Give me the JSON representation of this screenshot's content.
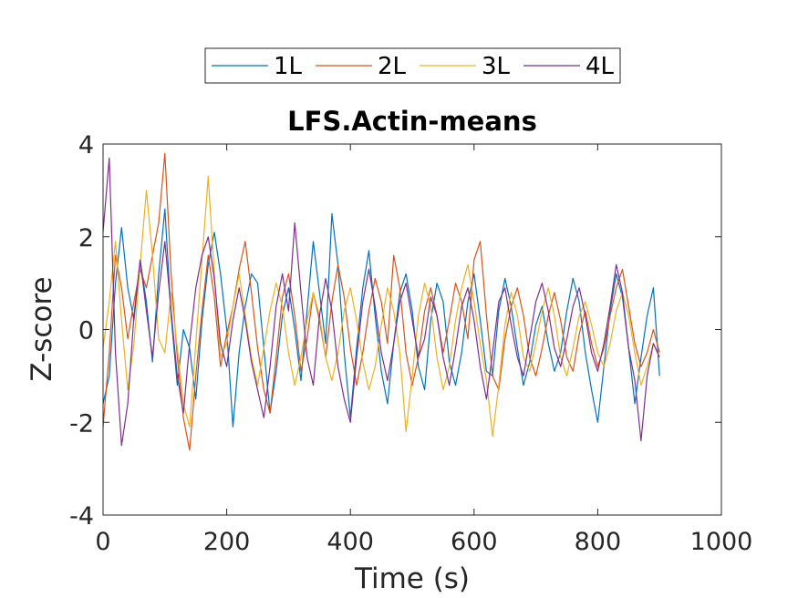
{
  "chart_data": {
    "type": "line",
    "title": "LFS.Actin-means",
    "xlabel": "Time (s)",
    "ylabel": "Z-score",
    "xlim": [
      0,
      1000
    ],
    "ylim": [
      -4,
      4
    ],
    "xticks": [
      0,
      200,
      400,
      600,
      800,
      1000
    ],
    "yticks": [
      -4,
      -2,
      0,
      2,
      4
    ],
    "xtick_labels": [
      "0",
      "200",
      "400",
      "600",
      "800",
      "1000"
    ],
    "ytick_labels": [
      "-4",
      "-2",
      "0",
      "2",
      "4"
    ],
    "grid": false,
    "legend": {
      "placement": "top-center-outside",
      "orientation": "horizontal"
    },
    "series": [
      {
        "name": "1L",
        "color": "#0072BD",
        "x": [
          0,
          10,
          20,
          30,
          40,
          50,
          60,
          70,
          80,
          90,
          100,
          110,
          120,
          130,
          140,
          150,
          160,
          170,
          180,
          190,
          200,
          210,
          220,
          230,
          240,
          250,
          260,
          270,
          280,
          290,
          300,
          310,
          320,
          330,
          340,
          350,
          360,
          370,
          380,
          390,
          400,
          410,
          420,
          430,
          440,
          450,
          460,
          470,
          480,
          490,
          500,
          510,
          520,
          530,
          540,
          550,
          560,
          570,
          580,
          590,
          600,
          610,
          620,
          630,
          640,
          650,
          660,
          670,
          680,
          690,
          700,
          710,
          720,
          730,
          740,
          750,
          760,
          770,
          780,
          790,
          800,
          810,
          820,
          830,
          840,
          850,
          860,
          870,
          880,
          890,
          900
        ],
        "values": [
          -1.6,
          -1.0,
          1.0,
          2.2,
          0.9,
          0.2,
          1.5,
          0.6,
          -0.7,
          1.2,
          2.6,
          0.3,
          -1.2,
          0.0,
          -0.4,
          -1.5,
          0.2,
          1.4,
          2.1,
          1.2,
          0.0,
          -2.1,
          -0.5,
          0.5,
          1.2,
          1.0,
          -0.4,
          -1.8,
          -0.9,
          0.3,
          0.9,
          0.0,
          -1.1,
          0.4,
          1.9,
          0.8,
          -0.3,
          2.5,
          1.4,
          -0.5,
          -1.9,
          -0.4,
          0.9,
          1.7,
          0.3,
          -0.9,
          -1.6,
          -0.3,
          0.8,
          1.2,
          0.4,
          -0.8,
          -1.3,
          0.2,
          1.0,
          0.6,
          -0.7,
          -1.2,
          -0.5,
          0.6,
          1.2,
          0.2,
          -0.9,
          -1.0,
          0.4,
          1.1,
          0.5,
          -0.4,
          -1.2,
          -0.7,
          0.1,
          0.5,
          -0.3,
          -0.9,
          -0.5,
          0.4,
          1.1,
          0.6,
          -0.5,
          -1.3,
          -2.0,
          -0.8,
          0.4,
          1.2,
          0.7,
          -0.4,
          -1.6,
          -0.6,
          0.3,
          0.9,
          -1.0
        ]
      },
      {
        "name": "2L",
        "color": "#D95319",
        "x": [
          0,
          10,
          20,
          30,
          40,
          50,
          60,
          70,
          80,
          90,
          100,
          110,
          120,
          130,
          140,
          150,
          160,
          170,
          180,
          190,
          200,
          210,
          220,
          230,
          240,
          250,
          260,
          270,
          280,
          290,
          300,
          310,
          320,
          330,
          340,
          350,
          360,
          370,
          380,
          390,
          400,
          410,
          420,
          430,
          440,
          450,
          460,
          470,
          480,
          490,
          500,
          510,
          520,
          530,
          540,
          550,
          560,
          570,
          580,
          590,
          600,
          610,
          620,
          630,
          640,
          650,
          660,
          670,
          680,
          690,
          700,
          710,
          720,
          730,
          740,
          750,
          760,
          770,
          780,
          790,
          800,
          810,
          820,
          830,
          840,
          850,
          860,
          870,
          880,
          890,
          900
        ],
        "values": [
          -2.1,
          -0.5,
          1.6,
          0.9,
          -0.2,
          0.6,
          1.3,
          0.9,
          1.6,
          2.3,
          3.8,
          1.2,
          -0.6,
          -1.9,
          -2.6,
          -1.0,
          0.4,
          1.6,
          0.7,
          -0.8,
          -0.1,
          0.5,
          1.3,
          1.9,
          0.8,
          -0.4,
          -1.3,
          -1.8,
          -0.6,
          0.7,
          1.2,
          0.3,
          -0.9,
          -0.2,
          0.8,
          0.2,
          -0.6,
          0.6,
          1.4,
          0.7,
          -0.4,
          -1.2,
          -0.5,
          0.4,
          1.1,
          0.6,
          -0.3,
          1.6,
          0.9,
          -0.5,
          -1.2,
          -0.6,
          0.4,
          0.9,
          0.3,
          -0.5,
          0.2,
          1.0,
          0.6,
          -0.2,
          1.5,
          1.9,
          0.3,
          -1.0,
          -1.3,
          -0.2,
          0.5,
          0.9,
          0.3,
          -0.6,
          -1.0,
          -0.4,
          0.3,
          0.8,
          0.2,
          -0.6,
          -0.9,
          -0.1,
          0.4,
          -0.3,
          -0.8,
          -0.4,
          0.3,
          0.9,
          1.3,
          0.5,
          -0.3,
          -0.8,
          -0.5,
          0.0,
          -0.5
        ]
      },
      {
        "name": "3L",
        "color": "#EDB120",
        "x": [
          0,
          10,
          20,
          30,
          40,
          50,
          60,
          70,
          80,
          90,
          100,
          110,
          120,
          130,
          140,
          150,
          160,
          170,
          180,
          190,
          200,
          210,
          220,
          230,
          240,
          250,
          260,
          270,
          280,
          290,
          300,
          310,
          320,
          330,
          340,
          350,
          360,
          370,
          380,
          390,
          400,
          410,
          420,
          430,
          440,
          450,
          460,
          470,
          480,
          490,
          500,
          510,
          520,
          530,
          540,
          550,
          560,
          570,
          580,
          590,
          600,
          610,
          620,
          630,
          640,
          650,
          660,
          670,
          680,
          690,
          700,
          710,
          720,
          730,
          740,
          750,
          760,
          770,
          780,
          790,
          800,
          810,
          820,
          830,
          840,
          850,
          860,
          870,
          880,
          890,
          900
        ],
        "values": [
          -0.4,
          0.6,
          1.9,
          0.2,
          -1.3,
          -0.3,
          1.4,
          3.0,
          1.6,
          -0.2,
          -0.5,
          0.8,
          -0.4,
          -1.6,
          -2.1,
          -0.3,
          1.5,
          3.3,
          1.2,
          -0.6,
          -0.3,
          0.5,
          1.2,
          0.3,
          -0.6,
          -1.2,
          -0.4,
          0.4,
          1.0,
          0.5,
          -0.5,
          -1.2,
          -0.6,
          0.2,
          0.8,
          0.3,
          -0.6,
          -1.1,
          -0.5,
          0.4,
          0.9,
          0.2,
          -0.7,
          -1.3,
          -0.8,
          0.1,
          0.9,
          0.4,
          -0.5,
          -2.2,
          -1.0,
          0.3,
          1.0,
          0.5,
          -0.6,
          -1.3,
          -0.8,
          0.2,
          0.9,
          1.4,
          0.6,
          -0.3,
          -1.1,
          -2.3,
          -1.2,
          0.1,
          0.8,
          0.3,
          -0.6,
          -0.9,
          -0.3,
          0.4,
          0.9,
          0.3,
          -0.6,
          -1.0,
          -0.4,
          0.3,
          0.6,
          0.1,
          -0.5,
          -0.8,
          -0.3,
          0.4,
          0.8,
          0.3,
          -0.5,
          -1.2,
          -0.8,
          -0.3,
          -0.6
        ]
      },
      {
        "name": "4L",
        "color": "#7E2F8E",
        "x": [
          0,
          10,
          20,
          30,
          40,
          50,
          60,
          70,
          80,
          90,
          100,
          110,
          120,
          130,
          140,
          150,
          160,
          170,
          180,
          190,
          200,
          210,
          220,
          230,
          240,
          250,
          260,
          270,
          280,
          290,
          300,
          310,
          320,
          330,
          340,
          350,
          360,
          370,
          380,
          390,
          400,
          410,
          420,
          430,
          440,
          450,
          460,
          470,
          480,
          490,
          500,
          510,
          520,
          530,
          540,
          550,
          560,
          570,
          580,
          590,
          600,
          610,
          620,
          630,
          640,
          650,
          660,
          670,
          680,
          690,
          700,
          710,
          720,
          730,
          740,
          750,
          760,
          770,
          780,
          790,
          800,
          810,
          820,
          830,
          840,
          850,
          860,
          870,
          880,
          890,
          900
        ],
        "values": [
          2.1,
          3.7,
          -0.5,
          -2.5,
          -1.6,
          0.3,
          1.5,
          0.4,
          -0.6,
          0.8,
          1.9,
          0.4,
          -1.0,
          -1.8,
          -0.3,
          0.9,
          1.6,
          2.0,
          1.1,
          -0.3,
          -0.8,
          0.2,
          0.9,
          0.2,
          -0.7,
          -1.3,
          -1.9,
          -0.8,
          0.5,
          1.2,
          0.4,
          2.3,
          0.8,
          -0.6,
          -1.2,
          0.3,
          1.1,
          0.4,
          -0.8,
          -1.5,
          -2.0,
          -0.6,
          0.6,
          1.3,
          0.5,
          -0.5,
          -1.1,
          -0.3,
          0.6,
          1.0,
          0.2,
          -0.6,
          -0.2,
          0.7,
          0.3,
          -0.6,
          -1.2,
          -0.4,
          0.5,
          0.9,
          0.2,
          -0.8,
          -1.5,
          -0.5,
          0.6,
          0.9,
          0.1,
          -0.6,
          -1.0,
          -0.2,
          0.6,
          1.0,
          0.4,
          -0.4,
          -0.8,
          -0.2,
          0.5,
          0.9,
          0.3,
          -0.5,
          -0.9,
          -0.3,
          0.5,
          1.4,
          0.8,
          -0.4,
          -1.1,
          -2.4,
          -1.0,
          -0.3,
          -0.6
        ]
      }
    ]
  }
}
